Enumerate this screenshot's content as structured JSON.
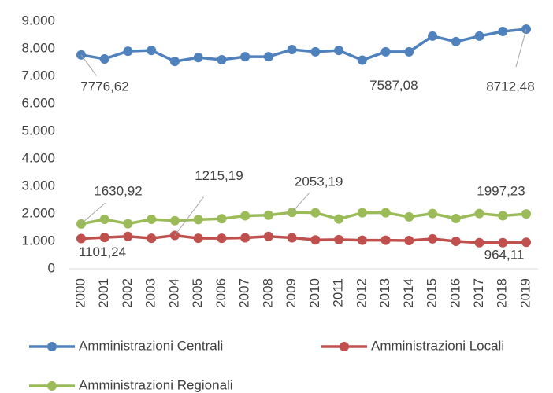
{
  "chart_data": {
    "type": "line",
    "categories": [
      "2000",
      "2001",
      "2002",
      "2003",
      "2004",
      "2005",
      "2006",
      "2007",
      "2008",
      "2009",
      "2010",
      "2011",
      "2012",
      "2013",
      "2014",
      "2015",
      "2016",
      "2017",
      "2018",
      "2019"
    ],
    "series": [
      {
        "name": "Amministrazioni Centrali",
        "color": "#4f81bd",
        "values": [
          7776.62,
          7630,
          7910,
          7940,
          7540,
          7680,
          7600,
          7710,
          7710,
          7970,
          7890,
          7940,
          7587.08,
          7890,
          7890,
          8460,
          8260,
          8460,
          8630,
          8712.48
        ],
        "value_labels": [
          "7776,62",
          null,
          null,
          null,
          null,
          null,
          null,
          null,
          null,
          null,
          null,
          null,
          "7587,08",
          null,
          null,
          null,
          null,
          null,
          null,
          "8712,48"
        ]
      },
      {
        "name": "Amministrazioni Locali",
        "color": "#c0504d",
        "values": [
          1101.24,
          1140,
          1180,
          1110,
          1215.19,
          1110,
          1110,
          1130,
          1180,
          1130,
          1050,
          1060,
          1040,
          1040,
          1030,
          1090,
          1000,
          950,
          950,
          964.11
        ],
        "value_labels": [
          "1101,24",
          null,
          null,
          null,
          "1215,19",
          null,
          null,
          null,
          null,
          null,
          null,
          null,
          null,
          null,
          null,
          null,
          null,
          null,
          null,
          "964,11"
        ]
      },
      {
        "name": "Amministrazioni Regionali",
        "color": "#9bbb59",
        "values": [
          1630.92,
          1800,
          1640,
          1800,
          1750,
          1790,
          1820,
          1930,
          1950,
          2053.19,
          2040,
          1810,
          2040,
          2040,
          1890,
          2010,
          1830,
          2010,
          1930,
          1997.23
        ],
        "value_labels": [
          "1630,92",
          null,
          null,
          null,
          null,
          null,
          null,
          null,
          null,
          "2053,19",
          null,
          null,
          null,
          null,
          null,
          null,
          null,
          null,
          null,
          "1997,23"
        ]
      }
    ],
    "ylim": [
      0,
      9000
    ],
    "yticks": [
      0,
      {
        "value": 1000,
        "label": "1.000"
      },
      {
        "value": 2000,
        "label": "2.000"
      },
      {
        "value": 3000,
        "label": "3.000"
      },
      {
        "value": 4000,
        "label": "4.000"
      },
      {
        "value": 5000,
        "label": "5.000"
      },
      {
        "value": 6000,
        "label": "6.000"
      },
      {
        "value": 7000,
        "label": "7.000"
      },
      {
        "value": 8000,
        "label": "8.000"
      },
      {
        "value": 9000,
        "label": "9.000"
      }
    ],
    "grid": false
  }
}
